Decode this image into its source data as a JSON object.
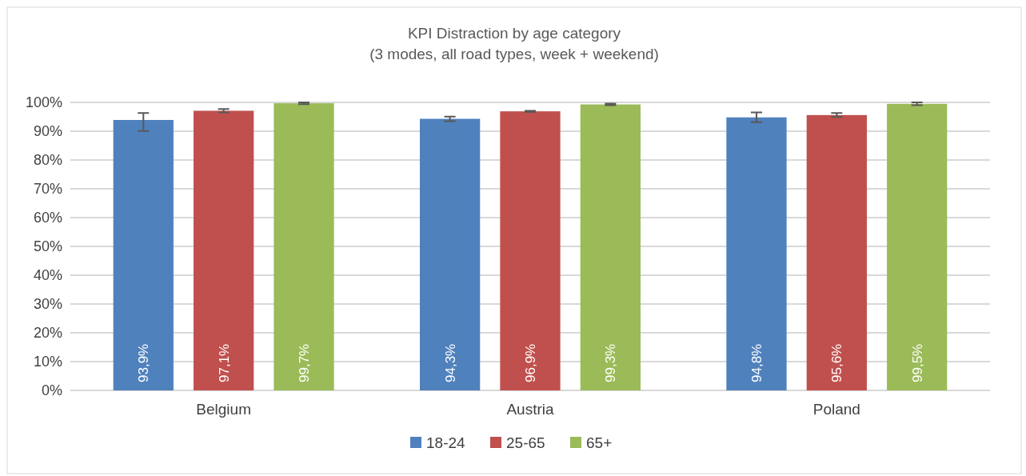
{
  "chart_data": {
    "type": "bar",
    "title": "KPI Distraction by age category",
    "subtitle": "(3 modes, all road types, week + weekend)",
    "categories": [
      "Belgium",
      "Austria",
      "Poland"
    ],
    "series": [
      {
        "name": "18-24",
        "color": "#4f81bd",
        "values": [
          93.9,
          94.3,
          94.8
        ],
        "errors": [
          [
            90.1,
            96.3
          ],
          0.8,
          1.7
        ],
        "value_labels": [
          "93,9%",
          "94,3%",
          "94,8%"
        ]
      },
      {
        "name": "25-65",
        "color": "#c0504d",
        "values": [
          97.1,
          96.9,
          95.6
        ],
        "errors": [
          0.6,
          0.2,
          0.7
        ],
        "value_labels": [
          "97,1%",
          "96,9%",
          "95,6%"
        ]
      },
      {
        "name": "65+",
        "color": "#9bbb59",
        "values": [
          99.7,
          99.3,
          99.5
        ],
        "errors": [
          0.3,
          0.3,
          0.5
        ],
        "value_labels": [
          "99,7%",
          "99,3%",
          "99,5%"
        ]
      }
    ],
    "ylim": [
      0,
      100
    ],
    "yticks": [
      {
        "value": 0,
        "label": "0%"
      },
      {
        "value": 10,
        "label": "10%"
      },
      {
        "value": 20,
        "label": "20%"
      },
      {
        "value": 30,
        "label": "30%"
      },
      {
        "value": 40,
        "label": "40%"
      },
      {
        "value": 50,
        "label": "50%"
      },
      {
        "value": 60,
        "label": "60%"
      },
      {
        "value": 70,
        "label": "70%"
      },
      {
        "value": 80,
        "label": "80%"
      },
      {
        "value": 90,
        "label": "90%"
      },
      {
        "value": 100,
        "label": "100%"
      }
    ],
    "grid": "y",
    "legend": "bottom"
  }
}
